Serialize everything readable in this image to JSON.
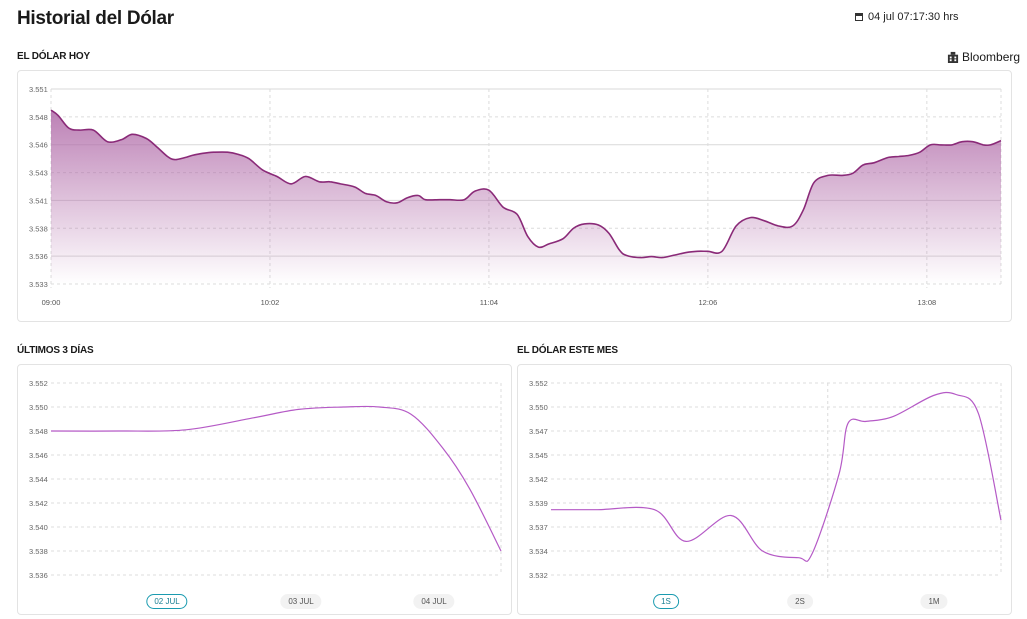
{
  "header": {
    "title": "Historial del Dólar",
    "timestamp": "04 jul 07:17:30 hrs",
    "timestamp_icon": "calendar-icon"
  },
  "today": {
    "title": "EL DÓLAR HOY",
    "source": "Bloomberg",
    "source_icon": "building-icon"
  },
  "three_days": {
    "title": "ÚLTIMOS 3 DÍAS",
    "tabs": [
      "02 JUL",
      "03 JUL",
      "04 JUL"
    ],
    "active_tab": 0
  },
  "month": {
    "title": "EL DÓLAR ESTE MES",
    "tabs": [
      "1S",
      "2S",
      "1M"
    ],
    "active_tab": 0
  },
  "colors": {
    "line": "#8a2a78",
    "line_light": "#b55ac6",
    "fill_top": "#b06aa8",
    "tab_accent": "#1a9bb0"
  },
  "chart_data": [
    {
      "type": "area",
      "title": "EL DÓLAR HOY",
      "x_ticks": [
        "09:00",
        "10:02",
        "11:04",
        "12:06",
        "13:08"
      ],
      "x_tick_minutes": [
        0,
        62,
        124,
        186,
        248
      ],
      "y_ticks": [
        "3.551",
        "3.548",
        "3.546",
        "3.543",
        "3.541",
        "3.538",
        "3.536",
        "3.533"
      ],
      "xlim": [
        0,
        269
      ],
      "ylim": [
        3.533,
        3.5515
      ],
      "grid": true,
      "series": [
        {
          "x": [
            0,
            2,
            5,
            8,
            12,
            16,
            20,
            23,
            27,
            30,
            33,
            35,
            38,
            40,
            43,
            46,
            50,
            53,
            56,
            60,
            64,
            68,
            72,
            76,
            79,
            82,
            86,
            89,
            92,
            95,
            98,
            101,
            104,
            106,
            110,
            113,
            117,
            120,
            124,
            128,
            132,
            135,
            138,
            141,
            145,
            148,
            151,
            155,
            158,
            161,
            163,
            167,
            170,
            173,
            176,
            180,
            183,
            186,
            190,
            194,
            198,
            202,
            206,
            210,
            213,
            216,
            220,
            224,
            227,
            230,
            233,
            237,
            240,
            243,
            246,
            249,
            252,
            255,
            258,
            261,
            264,
            266,
            269
          ],
          "y": [
            3.5495,
            3.549,
            3.5478,
            3.5476,
            3.5476,
            3.5465,
            3.5467,
            3.5472,
            3.5468,
            3.546,
            3.5451,
            3.5448,
            3.545,
            3.5452,
            3.5454,
            3.5455,
            3.5455,
            3.5453,
            3.5449,
            3.5438,
            3.5432,
            3.5425,
            3.5432,
            3.5427,
            3.5427,
            3.5425,
            3.5422,
            3.5416,
            3.5414,
            3.5408,
            3.5407,
            3.5412,
            3.5414,
            3.541,
            3.541,
            3.541,
            3.541,
            3.5418,
            3.5419,
            3.5403,
            3.5396,
            3.5375,
            3.5365,
            3.5368,
            3.5373,
            3.5383,
            3.5387,
            3.5386,
            3.5378,
            3.5362,
            3.5357,
            3.5355,
            3.5356,
            3.5355,
            3.5357,
            3.536,
            3.5361,
            3.5361,
            3.5361,
            3.5385,
            3.5393,
            3.539,
            3.5385,
            3.5385,
            3.54,
            3.5426,
            3.5433,
            3.5433,
            3.5435,
            3.5443,
            3.5445,
            3.545,
            3.5451,
            3.5452,
            3.5455,
            3.5462,
            3.5462,
            3.5462,
            3.5465,
            3.5465,
            3.5462,
            3.5462,
            3.5466
          ]
        }
      ]
    },
    {
      "type": "line",
      "title": "ÚLTIMOS 3 DÍAS",
      "y_ticks": [
        "3.552",
        "3.550",
        "3.548",
        "3.546",
        "3.544",
        "3.542",
        "3.540",
        "3.538",
        "3.536"
      ],
      "ylim": [
        3.536,
        3.552
      ],
      "grid": true,
      "series": [
        {
          "x": [
            0,
            0.15,
            0.3,
            0.45,
            0.55,
            0.65,
            0.73,
            0.8,
            0.87,
            0.93,
            1.0
          ],
          "y": [
            3.548,
            3.548,
            3.5481,
            3.5491,
            3.5498,
            3.55,
            3.55,
            3.5494,
            3.5466,
            3.5432,
            3.538
          ]
        }
      ]
    },
    {
      "type": "line",
      "title": "EL DÓLAR ESTE MES",
      "y_ticks": [
        "3.552",
        "3.550",
        "3.547",
        "3.545",
        "3.542",
        "3.539",
        "3.537",
        "3.534",
        "3.532"
      ],
      "ylim": [
        3.532,
        3.552
      ],
      "grid": true,
      "series": [
        {
          "x": [
            0,
            0.1,
            0.23,
            0.3,
            0.4,
            0.47,
            0.55,
            0.58,
            0.64,
            0.66,
            0.7,
            0.76,
            0.85,
            0.9,
            0.95,
            1.0
          ],
          "y": [
            3.5388,
            3.5388,
            3.5388,
            3.5355,
            3.5382,
            3.5345,
            3.5338,
            3.5342,
            3.5425,
            3.5478,
            3.548,
            3.5485,
            3.5507,
            3.5508,
            3.5488,
            3.5377
          ]
        }
      ]
    }
  ]
}
